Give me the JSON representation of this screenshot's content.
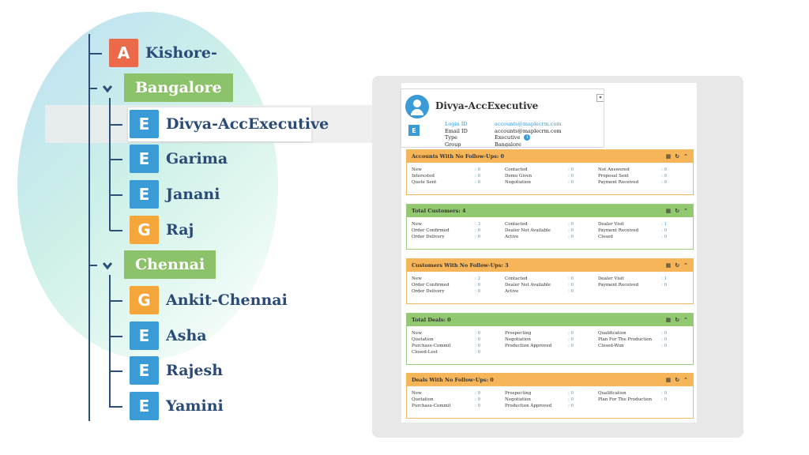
{
  "tree": {
    "root": {
      "badge": "A",
      "label": "Kishore-"
    },
    "groups": [
      {
        "label": "Bangalore",
        "members": [
          {
            "badge": "E",
            "label": "Divya-AccExecutive",
            "selected": true
          },
          {
            "badge": "E",
            "label": "Garima"
          },
          {
            "badge": "E",
            "label": "Janani"
          },
          {
            "badge": "G",
            "label": "Raj"
          }
        ]
      },
      {
        "label": "Chennai",
        "members": [
          {
            "badge": "G",
            "label": "Ankit-Chennai"
          },
          {
            "badge": "E",
            "label": "Asha"
          },
          {
            "badge": "E",
            "label": "Rajesh"
          },
          {
            "badge": "E",
            "label": "Yamini"
          }
        ]
      }
    ]
  },
  "profile": {
    "name": "Divya-AccExecutive",
    "badge": "E",
    "menu_icon": "dropdown-icon",
    "fields": [
      {
        "key": "Login ID",
        "value": "accounts@maplecrm.com",
        "link": true
      },
      {
        "key": "Email ID",
        "value": "accounts@maplecrm.com",
        "link": false
      },
      {
        "key": "Type",
        "value": "Executive",
        "link": false,
        "info": "i"
      },
      {
        "key": "Group",
        "value": "Bangalore",
        "link": false
      }
    ]
  },
  "cards": [
    {
      "title": "Accounts With No Follow-Ups: 0",
      "color": "orange",
      "stats": [
        [
          "New",
          ": 0"
        ],
        [
          "Contacted",
          ": 0"
        ],
        [
          "Not Answered",
          ": 0"
        ],
        [
          "Interested",
          ": 0"
        ],
        [
          "Demo Given",
          ": 0"
        ],
        [
          "Proposal Sent",
          ": 0"
        ],
        [
          "Quote Sent",
          ": 0"
        ],
        [
          "Negotiation",
          ": 0"
        ],
        [
          "Payment Received",
          ": 0"
        ]
      ]
    },
    {
      "title": "Total Customers: 4",
      "color": "green",
      "stats": [
        [
          "New",
          ": 3"
        ],
        [
          "Contacted",
          ": 0"
        ],
        [
          "Dealer Visit",
          ": 1"
        ],
        [
          "Order Confirmed",
          ": 0"
        ],
        [
          "Dealer Not Available",
          ": 0"
        ],
        [
          "Payment Received",
          ": 0"
        ],
        [
          "Order Delivery",
          ": 0"
        ],
        [
          "Active",
          ": 0"
        ],
        [
          "Closed",
          ": 0"
        ]
      ]
    },
    {
      "title": "Customers With No Follow-Ups: 3",
      "color": "orange",
      "stats": [
        [
          "New",
          ": 2"
        ],
        [
          "Contacted",
          ": 0"
        ],
        [
          "Dealer Visit",
          ": 1"
        ],
        [
          "Order Confirmed",
          ": 0"
        ],
        [
          "Dealer Not Available",
          ": 0"
        ],
        [
          "Payment Received",
          ": 0"
        ],
        [
          "Order Delivery",
          ": 0"
        ],
        [
          "Active",
          ": 0"
        ]
      ]
    },
    {
      "title": "Total Deals: 0",
      "color": "green",
      "stats": [
        [
          "New",
          ": 0"
        ],
        [
          "Prospecting",
          ": 0"
        ],
        [
          "Qualification",
          ": 0"
        ],
        [
          "Quotation",
          ": 0"
        ],
        [
          "Negotiation",
          ": 0"
        ],
        [
          "Plan For The Production",
          ": 0"
        ],
        [
          "Purchase-Commit",
          ": 0"
        ],
        [
          "Production Approved",
          ": 0"
        ],
        [
          "Closed-Won",
          ": 0"
        ],
        [
          "Closed-Lost",
          ": 0"
        ]
      ]
    },
    {
      "title": "Deals With No Follow-Ups: 0",
      "color": "orange",
      "stats": [
        [
          "New",
          ": 0"
        ],
        [
          "Prospecting",
          ": 0"
        ],
        [
          "Qualification",
          ": 0"
        ],
        [
          "Quotation",
          ": 0"
        ],
        [
          "Negotiation",
          ": 0"
        ],
        [
          "Plan For The Production",
          ": 0"
        ],
        [
          "Purchase-Commit",
          ": 0"
        ],
        [
          "Production Approved",
          ": 0"
        ]
      ]
    }
  ],
  "card_icons": {
    "grid": "▦",
    "refresh": "↻",
    "collapse": "⌃"
  },
  "colors": {
    "orange": "#f7b55a",
    "green": "#92c86f",
    "blue": "#3a9bd6",
    "navy": "#2a4a78"
  }
}
